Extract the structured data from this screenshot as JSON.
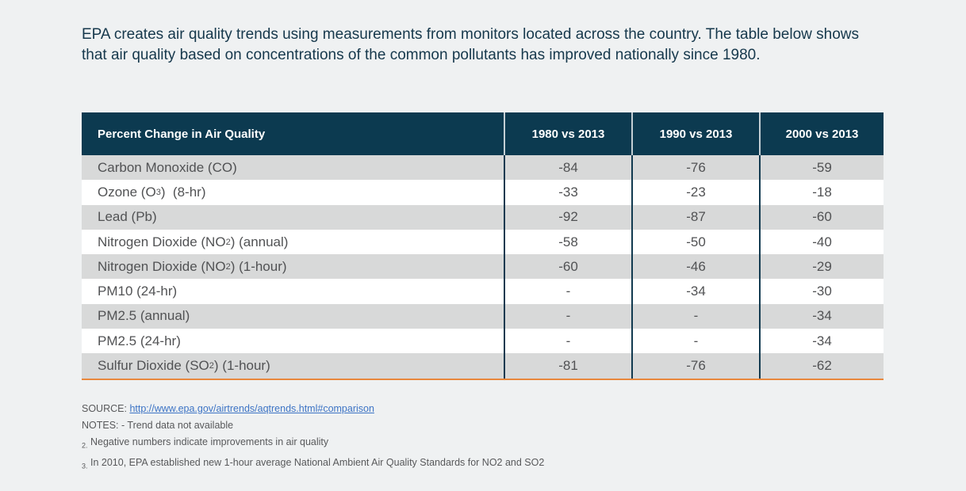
{
  "page": {
    "intro": "EPA creates air quality trends using measurements from monitors located across the country. The table below shows that air quality based on concentrations of the common pollutants has improved nationally since 1980."
  },
  "table": {
    "header": {
      "col0": "Percent Change in Air Quality",
      "col1": "1980 vs 2013",
      "col2": "1990 vs 2013",
      "col3": "2000 vs 2013"
    },
    "rows": [
      {
        "label_pre": "Carbon Monoxide (CO)",
        "label_sub": "",
        "label_post": "",
        "values": [
          "-84",
          "-76",
          "-59"
        ]
      },
      {
        "label_pre": "Ozone (O",
        "label_sub": "3",
        "label_post": ")  (8-hr)",
        "values": [
          "-33",
          "-23",
          "-18"
        ]
      },
      {
        "label_pre": "Lead (Pb)",
        "label_sub": "",
        "label_post": "",
        "values": [
          "-92",
          "-87",
          "-60"
        ]
      },
      {
        "label_pre": "Nitrogen Dioxide (NO",
        "label_sub": "2",
        "label_post": ") (annual)",
        "values": [
          "-58",
          "-50",
          "-40"
        ]
      },
      {
        "label_pre": "Nitrogen Dioxide (NO",
        "label_sub": "2",
        "label_post": ") (1-hour)",
        "values": [
          "-60",
          "-46",
          "-29"
        ]
      },
      {
        "label_pre": "PM10 (24-hr)",
        "label_sub": "",
        "label_post": "",
        "values": [
          "-",
          "-34",
          "-30"
        ]
      },
      {
        "label_pre": "PM2.5 (annual)",
        "label_sub": "",
        "label_post": "",
        "values": [
          "-",
          "-",
          "-34"
        ]
      },
      {
        "label_pre": "PM2.5 (24-hr)",
        "label_sub": "",
        "label_post": "",
        "values": [
          "-",
          "-",
          "-34"
        ]
      },
      {
        "label_pre": "Sulfur Dioxide (SO",
        "label_sub": "2",
        "label_post": ") (1-hour)",
        "values": [
          "-81",
          "-76",
          "-62"
        ]
      }
    ]
  },
  "footer": {
    "source_label": "SOURCE: ",
    "source_link": "http://www.epa.gov/airtrends/aqtrends.html#comparison",
    "notes_line": "NOTES: - Trend data not available",
    "note2_marker": "2.",
    "note2_text": " Negative numbers indicate improvements in air quality",
    "note3_marker": "3.",
    "note3_text": " In 2010, EPA established new 1-hour average National Ambient Air Quality Standards for NO2 and SO2"
  },
  "colors": {
    "page_background": "#eff1f2",
    "header_background": "#0c3a50",
    "header_text": "#ffffff",
    "row_alt_background": "#d8d9d9",
    "body_text": "#515254",
    "intro_text": "#16384c",
    "column_divider": "#123a50",
    "table_bottom_border": "#e9873c",
    "link": "#3d74c5"
  },
  "chart_data": {
    "type": "table",
    "title": "Percent Change in Air Quality",
    "columns": [
      "Percent Change in Air Quality",
      "1980 vs 2013",
      "1990 vs 2013",
      "2000 vs 2013"
    ],
    "rows": [
      [
        "Carbon Monoxide (CO)",
        -84,
        -76,
        -59
      ],
      [
        "Ozone (O3) (8-hr)",
        -33,
        -23,
        -18
      ],
      [
        "Lead (Pb)",
        -92,
        -87,
        -60
      ],
      [
        "Nitrogen Dioxide (NO2) (annual)",
        -58,
        -50,
        -40
      ],
      [
        "Nitrogen Dioxide (NO2) (1-hour)",
        -60,
        -46,
        -29
      ],
      [
        "PM10 (24-hr)",
        null,
        -34,
        -30
      ],
      [
        "PM2.5 (annual)",
        null,
        null,
        -34
      ],
      [
        "PM2.5 (24-hr)",
        null,
        null,
        -34
      ],
      [
        "Sulfur Dioxide (SO2) (1-hour)",
        -81,
        -76,
        -62
      ]
    ],
    "missing_marker": "-",
    "notes": "Negative numbers indicate improvements in air quality"
  }
}
